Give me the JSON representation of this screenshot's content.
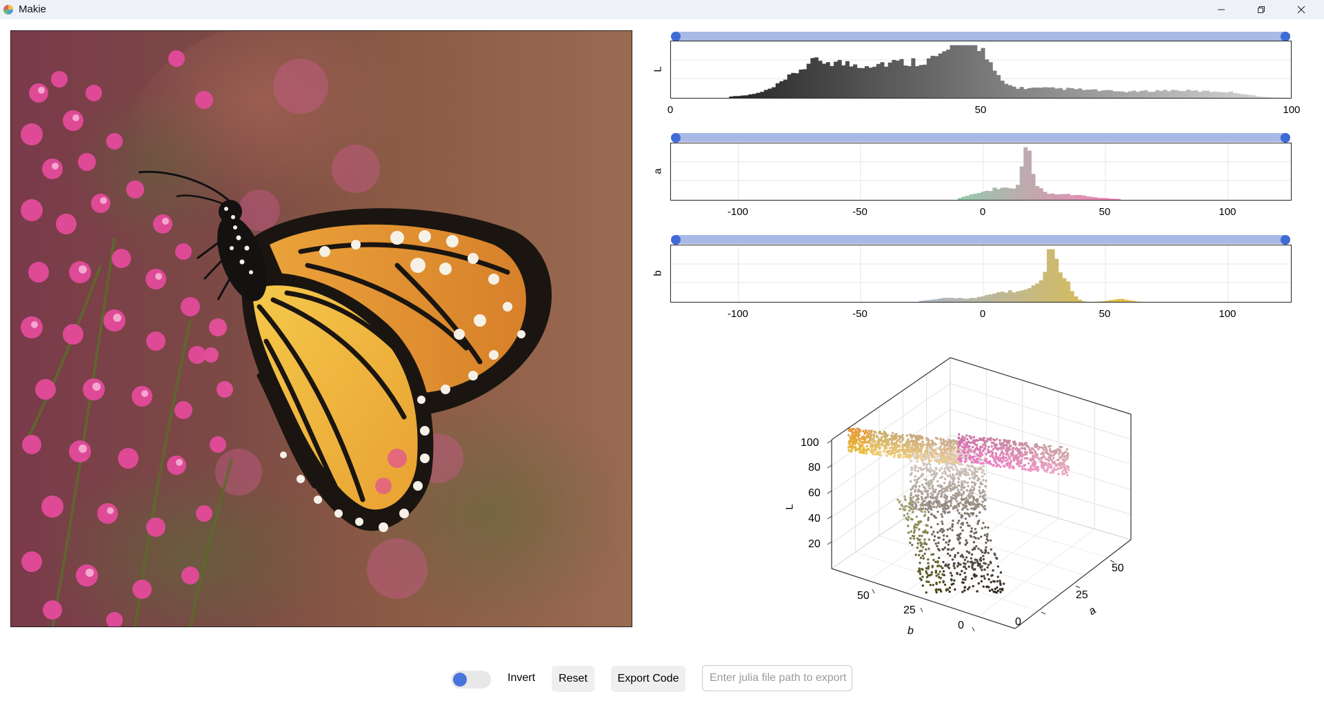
{
  "window": {
    "title": "Makie",
    "icon": "makie-logo-icon",
    "controls": [
      "minimize-icon",
      "restore-icon",
      "close-icon"
    ]
  },
  "histograms": [
    {
      "name": "L",
      "ylabel": "L",
      "xticks": [
        "0",
        "50",
        "100"
      ],
      "range": [
        0,
        100
      ]
    },
    {
      "name": "a",
      "ylabel": "a",
      "xticks": [
        "-100",
        "-50",
        "0",
        "50",
        "100"
      ],
      "range": [
        -128,
        127
      ]
    },
    {
      "name": "b",
      "ylabel": "b",
      "xticks": [
        "-100",
        "-50",
        "0",
        "50",
        "100"
      ],
      "range": [
        -128,
        127
      ]
    }
  ],
  "scatter3d": {
    "zlabel": "L",
    "xlabel": "b",
    "ylabel": "a",
    "zticks": [
      "100",
      "80",
      "60",
      "40",
      "20"
    ],
    "bticks": [
      "50",
      "25",
      "0"
    ],
    "aticks": [
      "0",
      "25",
      "50"
    ]
  },
  "controls": {
    "toggle_on": true,
    "invert_label": "Invert",
    "reset_label": "Reset",
    "export_label": "Export Code",
    "path_placeholder": "Enter julia file path to export",
    "accent": "#3e6bd6"
  }
}
